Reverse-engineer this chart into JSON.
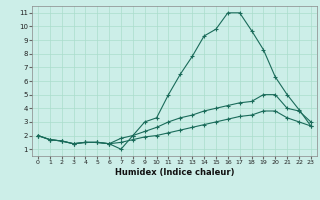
{
  "xlabel": "Humidex (Indice chaleur)",
  "bg_color": "#cceee8",
  "grid_color": "#aaddcc",
  "line_color": "#1a6b5a",
  "xlim": [
    -0.5,
    23.5
  ],
  "ylim": [
    0.5,
    11.5
  ],
  "xticks": [
    0,
    1,
    2,
    3,
    4,
    5,
    6,
    7,
    8,
    9,
    10,
    11,
    12,
    13,
    14,
    15,
    16,
    17,
    18,
    19,
    20,
    21,
    22,
    23
  ],
  "yticks": [
    1,
    2,
    3,
    4,
    5,
    6,
    7,
    8,
    9,
    10,
    11
  ],
  "line1_x": [
    0,
    1,
    2,
    3,
    4,
    5,
    6,
    7,
    8,
    9,
    10,
    11,
    12,
    13,
    14,
    15,
    16,
    17,
    18,
    19,
    20,
    21,
    22,
    23
  ],
  "line1_y": [
    2.0,
    1.7,
    1.6,
    1.4,
    1.5,
    1.5,
    1.4,
    1.0,
    2.0,
    3.0,
    3.3,
    5.0,
    6.5,
    7.8,
    9.3,
    9.8,
    11.0,
    11.0,
    9.7,
    8.3,
    6.3,
    5.0,
    3.9,
    2.7
  ],
  "line2_x": [
    0,
    1,
    2,
    3,
    4,
    5,
    6,
    7,
    8,
    9,
    10,
    11,
    12,
    13,
    14,
    15,
    16,
    17,
    18,
    19,
    20,
    21,
    22,
    23
  ],
  "line2_y": [
    2.0,
    1.7,
    1.6,
    1.4,
    1.5,
    1.5,
    1.4,
    1.8,
    2.0,
    2.3,
    2.6,
    3.0,
    3.3,
    3.5,
    3.8,
    4.0,
    4.2,
    4.4,
    4.5,
    5.0,
    5.0,
    4.0,
    3.8,
    3.0
  ],
  "line3_x": [
    0,
    1,
    2,
    3,
    4,
    5,
    6,
    7,
    8,
    9,
    10,
    11,
    12,
    13,
    14,
    15,
    16,
    17,
    18,
    19,
    20,
    21,
    22,
    23
  ],
  "line3_y": [
    2.0,
    1.7,
    1.6,
    1.4,
    1.5,
    1.5,
    1.4,
    1.5,
    1.7,
    1.9,
    2.0,
    2.2,
    2.4,
    2.6,
    2.8,
    3.0,
    3.2,
    3.4,
    3.5,
    3.8,
    3.8,
    3.3,
    3.0,
    2.7
  ]
}
